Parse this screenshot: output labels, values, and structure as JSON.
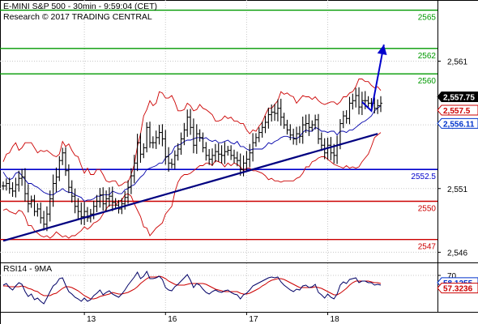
{
  "chart_data": {
    "type": "candlestick",
    "title": "E-MINI S&P 500 - 30min - 9:59:04 (CET)",
    "subtitle": "Research © 2017 TRADING CENTRAL",
    "price_axis": {
      "ylim": [
        2545.2,
        2565.8
      ],
      "ticks": [
        "2,561",
        "2,556",
        "2,551",
        "2,546"
      ],
      "tick_values": [
        2561,
        2556,
        2551,
        2546
      ]
    },
    "time_axis": {
      "labels": [
        "13",
        "16",
        "17",
        "18"
      ]
    },
    "current_price": {
      "label": "2,557.75",
      "value": 2557.75
    },
    "badges": [
      {
        "label": "2,557.5",
        "value": 2557.5,
        "color": "#cc0000"
      },
      {
        "label": "2,556.11",
        "value": 2556.11,
        "color": "#0033cc"
      }
    ],
    "resistance_levels": [
      {
        "label": "2565",
        "value": 2565,
        "color": "#009900"
      },
      {
        "label": "2562",
        "value": 2562,
        "color": "#009900"
      },
      {
        "label": "2560",
        "value": 2560,
        "color": "#009900"
      }
    ],
    "pivot_level": {
      "label": "2552.5",
      "value": 2552.5,
      "color": "#0000cc"
    },
    "support_levels": [
      {
        "label": "2550",
        "value": 2550,
        "color": "#cc0000"
      },
      {
        "label": "2547",
        "value": 2547,
        "color": "#cc0000"
      }
    ],
    "trendline": {
      "from": [
        0,
        2546.9
      ],
      "to": [
        120,
        2555.3
      ],
      "color": "#000080"
    },
    "projection": {
      "points": [
        [
          115,
          2557.8
        ],
        [
          118,
          2557.1
        ],
        [
          122,
          2562.3
        ]
      ],
      "color": "#0000cc"
    },
    "x_count": 122,
    "close": [
      2551.2,
      2551.4,
      2551.0,
      2550.8,
      2551.3,
      2551.8,
      2551.9,
      2550.6,
      2549.8,
      2550.1,
      2549.2,
      2549.4,
      2548.7,
      2548.2,
      2549.0,
      2550.2,
      2551.4,
      2551.9,
      2553.2,
      2553.8,
      2552.4,
      2551.1,
      2550.4,
      2549.6,
      2549.2,
      2548.8,
      2549.2,
      2548.7,
      2549.0,
      2549.6,
      2550.0,
      2550.5,
      2549.8,
      2550.2,
      2550.4,
      2549.9,
      2549.7,
      2549.4,
      2549.8,
      2550.3,
      2551.1,
      2552.0,
      2553.0,
      2554.6,
      2553.7,
      2554.2,
      2555.8,
      2554.6,
      2554.6,
      2555.0,
      2555.4,
      2554.9,
      2553.5,
      2553.0,
      2552.9,
      2553.6,
      2554.1,
      2554.9,
      2555.6,
      2556.6,
      2555.8,
      2554.4,
      2555.3,
      2555.0,
      2554.2,
      2553.6,
      2553.3,
      2553.6,
      2553.9,
      2553.7,
      2553.6,
      2553.9,
      2554.0,
      2553.6,
      2553.4,
      2553.2,
      2552.5,
      2553.0,
      2553.3,
      2553.8,
      2554.6,
      2555.0,
      2555.4,
      2555.8,
      2556.2,
      2556.8,
      2557.0,
      2556.9,
      2557.3,
      2556.6,
      2556.0,
      2555.6,
      2555.2,
      2554.9,
      2555.3,
      2555.1,
      2556.0,
      2556.1,
      2555.8,
      2556.0,
      2556.4,
      2554.9,
      2554.4,
      2553.8,
      2554.4,
      2553.8,
      2553.6,
      2554.4,
      2556.1,
      2556.7,
      2556.5,
      2557.7,
      2557.9,
      2558.3,
      2557.4,
      2557.9,
      2557.9,
      2557.7,
      2557.7,
      2557.3,
      2557.5,
      2557.7
    ],
    "bollinger_upper": [
      2553.1,
      2553.7,
      2553.8,
      2554.3,
      2554.6,
      2554.0,
      2554.2,
      2554.6,
      2554.6,
      2554.6,
      2554.2,
      2553.8,
      2554.0,
      2553.9,
      2554.0,
      2553.8,
      2553.6,
      2553.5,
      2553.7,
      2554.7,
      2554.3,
      2554.5,
      2554.0,
      2553.6,
      2553.5,
      2552.8,
      2552.2,
      2552.6,
      2552.1,
      2552.1,
      2552.5,
      2552.5,
      2552.1,
      2551.6,
      2551.5,
      2551.6,
      2551.6,
      2551.2,
      2551.3,
      2551.5,
      2551.5,
      2552.1,
      2552.9,
      2554.3,
      2555.3,
      2556.7,
      2557.2,
      2557.9,
      2557.5,
      2557.7,
      2558.6,
      2558.5,
      2558.1,
      2558.1,
      2558.3,
      2557.8,
      2557.1,
      2557.1,
      2557.2,
      2557.7,
      2557.5,
      2557.1,
      2557.2,
      2557.6,
      2557.3,
      2557.2,
      2557.0,
      2556.8,
      2556.3,
      2556.3,
      2556.4,
      2556.7,
      2556.5,
      2556.6,
      2556.3,
      2556.3,
      2556.1,
      2556.1,
      2555.6,
      2555.3,
      2555.6,
      2555.5,
      2555.9,
      2556.2,
      2556.8,
      2557.3,
      2557.3,
      2557.6,
      2557.9,
      2558.6,
      2558.4,
      2558.5,
      2558.3,
      2558.2,
      2557.7,
      2558.0,
      2558.3,
      2558.2,
      2558.2,
      2558.0,
      2558.2,
      2557.9,
      2557.7,
      2557.6,
      2557.7,
      2557.8,
      2557.8,
      2557.6,
      2557.8,
      2558.2,
      2558.2,
      2558.5,
      2558.6,
      2559.0,
      2559.6,
      2559.6,
      2559.4,
      2559.4,
      2559.1,
      2558.9,
      2559.0,
      2558.7
    ],
    "bollinger_lower": [
      2549.3,
      2549.4,
      2549.2,
      2549.1,
      2549.0,
      2549.3,
      2549.2,
      2548.8,
      2548.1,
      2548.1,
      2547.7,
      2547.5,
      2547.3,
      2547.2,
      2547.3,
      2547.1,
      2547.3,
      2547.6,
      2547.4,
      2547.2,
      2547.3,
      2547.1,
      2547.3,
      2547.3,
      2547.5,
      2547.7,
      2548.0,
      2547.8,
      2548.0,
      2548.3,
      2548.4,
      2548.6,
      2549.0,
      2549.4,
      2549.7,
      2549.7,
      2549.7,
      2550.0,
      2550.1,
      2550.5,
      2550.6,
      2550.4,
      2549.8,
      2549.3,
      2548.8,
      2548.0,
      2547.9,
      2547.3,
      2547.6,
      2547.9,
      2548.1,
      2548.3,
      2549.0,
      2549.3,
      2549.6,
      2550.7,
      2551.5,
      2551.9,
      2552.1,
      2552.1,
      2552.2,
      2552.4,
      2552.6,
      2552.8,
      2552.8,
      2553.0,
      2553.0,
      2552.8,
      2553.2,
      2553.1,
      2553.0,
      2552.7,
      2553.0,
      2552.8,
      2553.0,
      2552.9,
      2552.7,
      2552.4,
      2552.6,
      2552.6,
      2552.4,
      2552.4,
      2552.3,
      2552.2,
      2552.0,
      2551.7,
      2551.8,
      2551.6,
      2551.6,
      2551.5,
      2551.6,
      2551.6,
      2551.6,
      2551.6,
      2551.8,
      2551.9,
      2552.2,
      2552.7,
      2552.7,
      2553.1,
      2553.2,
      2553.4,
      2553.5,
      2553.5,
      2553.3,
      2553.1,
      2552.9,
      2552.8,
      2552.7,
      2552.6,
      2552.8,
      2552.6,
      2552.7,
      2552.6,
      2552.7,
      2553.1,
      2553.4,
      2553.7,
      2554.3,
      2555.0,
      2555.2,
      2555.4
    ],
    "moving_average": [
      2552.3,
      2551.9,
      2551.7,
      2551.8,
      2552.2,
      2552.3,
      2552.0,
      2551.7,
      2551.4,
      2551.4,
      2551.2,
      2551.1,
      2550.9,
      2550.7,
      2550.6,
      2550.5,
      2550.5,
      2550.7,
      2550.8,
      2551.0,
      2550.8,
      2550.7,
      2550.7,
      2550.5,
      2550.4,
      2550.3,
      2550.0,
      2550.1,
      2550.1,
      2550.2,
      2550.4,
      2550.4,
      2550.5,
      2550.5,
      2550.5,
      2550.8,
      2550.7,
      2550.6,
      2550.6,
      2550.9,
      2551.0,
      2551.2,
      2551.3,
      2551.6,
      2551.9,
      2552.1,
      2552.5,
      2552.6,
      2552.7,
      2552.8,
      2553.0,
      2553.0,
      2553.4,
      2553.6,
      2553.8,
      2554.3,
      2554.4,
      2554.5,
      2554.7,
      2554.8,
      2554.8,
      2554.9,
      2555.0,
      2555.0,
      2554.9,
      2555.0,
      2554.8,
      2554.7,
      2554.8,
      2554.6,
      2554.6,
      2554.7,
      2554.8,
      2554.6,
      2554.5,
      2554.7,
      2554.3,
      2554.3,
      2554.1,
      2554.0,
      2554.1,
      2554.1,
      2554.1,
      2554.1,
      2554.3,
      2554.6,
      2554.5,
      2554.7,
      2554.8,
      2555.0,
      2555.1,
      2555.1,
      2555.0,
      2555.0,
      2554.9,
      2555.1,
      2555.4,
      2555.6,
      2555.5,
      2555.5,
      2555.8,
      2555.7,
      2555.5,
      2555.5,
      2555.4,
      2555.5,
      2555.5,
      2555.2,
      2555.5,
      2555.5,
      2555.4,
      2555.6,
      2555.6,
      2555.8,
      2556.0,
      2556.2,
      2556.3,
      2556.5,
      2556.7,
      2557.1,
      2557.3,
      2557.5
    ],
    "rsi": {
      "label": "RSI14 - 9MA",
      "ylim": [
        25,
        85
      ],
      "ticks": [
        "70"
      ],
      "tick_values": [
        70
      ],
      "rsi_badge": {
        "label": "58.1255",
        "value": 58.1255,
        "color": "#0033cc"
      },
      "ma_badge": {
        "label": "57.3236",
        "value": 57.3236,
        "color": "#cc0000"
      },
      "rsi_values": [
        58,
        60,
        55,
        52,
        57,
        61,
        59,
        50,
        44,
        47,
        40,
        42,
        38,
        35,
        42,
        50,
        57,
        60,
        66,
        67,
        58,
        50,
        47,
        43,
        41,
        38,
        42,
        38,
        40,
        45,
        48,
        52,
        46,
        49,
        51,
        47,
        45,
        43,
        47,
        52,
        58,
        63,
        68,
        74,
        66,
        69,
        75,
        66,
        66,
        67,
        69,
        65,
        55,
        52,
        51,
        56,
        59,
        63,
        67,
        71,
        64,
        55,
        60,
        58,
        53,
        49,
        47,
        50,
        52,
        50,
        49,
        51,
        52,
        49,
        47,
        46,
        41,
        46,
        48,
        52,
        57,
        59,
        61,
        63,
        65,
        67,
        68,
        67,
        68,
        62,
        58,
        55,
        52,
        50,
        53,
        52,
        57,
        58,
        55,
        56,
        59,
        49,
        46,
        42,
        47,
        43,
        41,
        47,
        58,
        62,
        60,
        65,
        66,
        67,
        61,
        63,
        63,
        61,
        61,
        58,
        59,
        58
      ],
      "ma_values": [
        57,
        57,
        56,
        56,
        56,
        56,
        57,
        56,
        54,
        53,
        51,
        50,
        47,
        45,
        45,
        45,
        47,
        48,
        51,
        54,
        56,
        56,
        55,
        53,
        51,
        48,
        45,
        43,
        41,
        41,
        42,
        44,
        45,
        46,
        47,
        49,
        48,
        47,
        47,
        48,
        49,
        51,
        53,
        56,
        60,
        63,
        66,
        68,
        68,
        68,
        69,
        68,
        66,
        63,
        61,
        59,
        58,
        58,
        58,
        59,
        60,
        60,
        60,
        60,
        60,
        59,
        57,
        55,
        53,
        52,
        51,
        50,
        50,
        50,
        50,
        50,
        48,
        47,
        47,
        48,
        50,
        52,
        54,
        57,
        59,
        62,
        64,
        65,
        66,
        66,
        65,
        63,
        61,
        59,
        57,
        55,
        55,
        55,
        55,
        55,
        56,
        55,
        54,
        52,
        50,
        48,
        46,
        46,
        48,
        51,
        54,
        58,
        61,
        63,
        63,
        63,
        63,
        63,
        62,
        61,
        61,
        60
      ]
    }
  }
}
